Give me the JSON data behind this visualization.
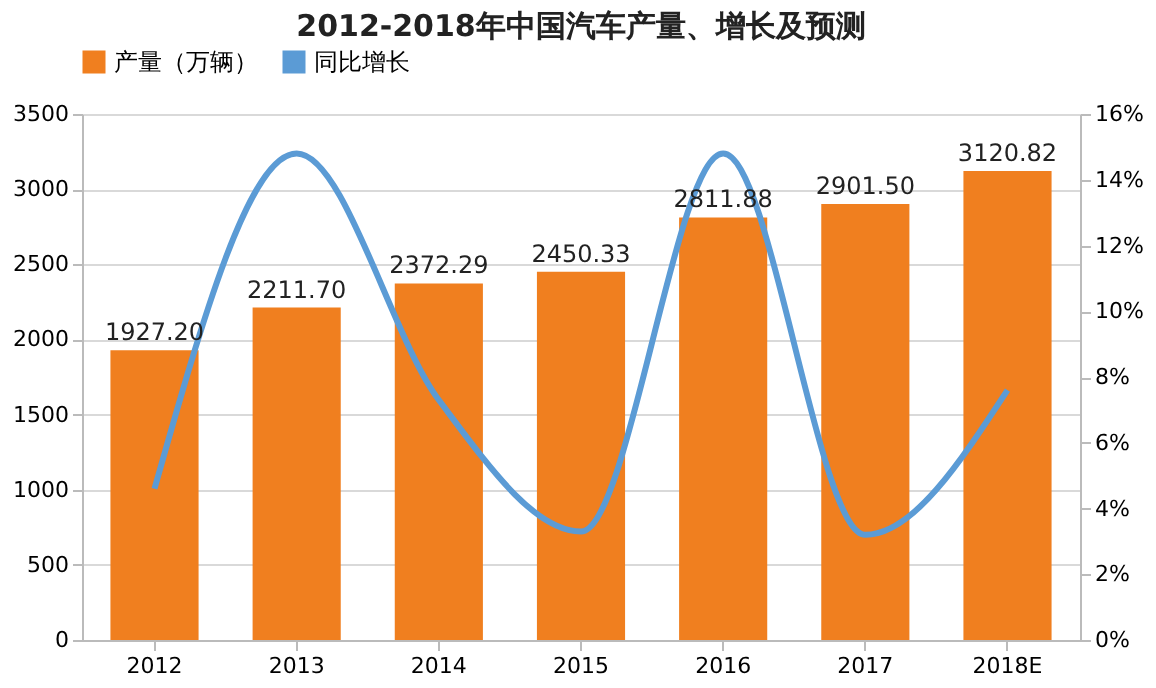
{
  "chart_data": {
    "type": "bar",
    "title": "2012-2018年中国汽车产量、增长及预测",
    "categories": [
      "2012",
      "2013",
      "2014",
      "2015",
      "2016",
      "2017",
      "2018E"
    ],
    "series": [
      {
        "name": "产量（万辆）",
        "color": "#f07f1f",
        "values": [
          1927.2,
          2211.7,
          2372.29,
          2450.33,
          2811.88,
          2901.5,
          3120.82
        ],
        "value_labels": [
          "1927.20",
          "2211.70",
          "2372.29",
          "2450.33",
          "2811.88",
          "2901.50",
          "3120.82"
        ]
      },
      {
        "name": "同比增长",
        "type": "line",
        "axis": "y2",
        "color": "#5b9bd5",
        "values": [
          4.6,
          14.8,
          7.3,
          3.3,
          14.8,
          3.2,
          7.6
        ]
      }
    ],
    "ylim": [
      0,
      3500
    ],
    "yticks": [
      0,
      500,
      1000,
      1500,
      2000,
      2500,
      3000,
      3500
    ],
    "y2lim": [
      0,
      16
    ],
    "y2ticks": [
      {
        "value": 0,
        "label": "0%"
      },
      {
        "value": 2,
        "label": "2%"
      },
      {
        "value": 4,
        "label": "4%"
      },
      {
        "value": 6,
        "label": "6%"
      },
      {
        "value": 8,
        "label": "8%"
      },
      {
        "value": 10,
        "label": "10%"
      },
      {
        "value": 12,
        "label": "12%"
      },
      {
        "value": 14,
        "label": "14%"
      },
      {
        "value": 16,
        "label": "16%"
      }
    ],
    "grid": "y",
    "legend": "top",
    "line_style": "solid"
  }
}
